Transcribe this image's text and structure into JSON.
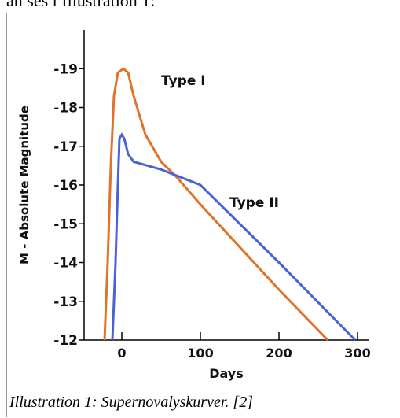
{
  "header_text": "an ses i Illustration 1:",
  "caption": "Illustration 1: Supernovalyskurver. [2]",
  "chart_data": {
    "type": "line",
    "xlabel": "Days",
    "ylabel": "M - Absolute Magnitude",
    "xlim": [
      -48,
      315
    ],
    "ylim": [
      -12,
      -20
    ],
    "xticks": [
      0,
      100,
      200,
      300
    ],
    "yticks": [
      -19,
      -18,
      -17,
      -16,
      -15,
      -14,
      -13,
      -12
    ],
    "series": [
      {
        "name": "Type I",
        "color": "#e0732a",
        "x": [
          -22,
          -18,
          -14,
          -10,
          -5,
          2,
          8,
          15,
          30,
          50,
          70,
          100,
          150,
          200,
          243,
          262
        ],
        "values": [
          -12,
          -14,
          -16.5,
          -18.3,
          -18.9,
          -19,
          -18.9,
          -18.3,
          -17.3,
          -16.6,
          -16.2,
          -15.5,
          -14.4,
          -13.3,
          -12.4,
          -12
        ]
      },
      {
        "name": "Type II",
        "color": "#4a63d0",
        "x": [
          -12,
          -8,
          -5,
          -3,
          0,
          3,
          8,
          15,
          50,
          100,
          200,
          297
        ],
        "values": [
          -12,
          -14,
          -16,
          -17.2,
          -17.3,
          -17.2,
          -16.8,
          -16.6,
          -16.4,
          -16.0,
          -14.0,
          -12
        ]
      }
    ]
  }
}
